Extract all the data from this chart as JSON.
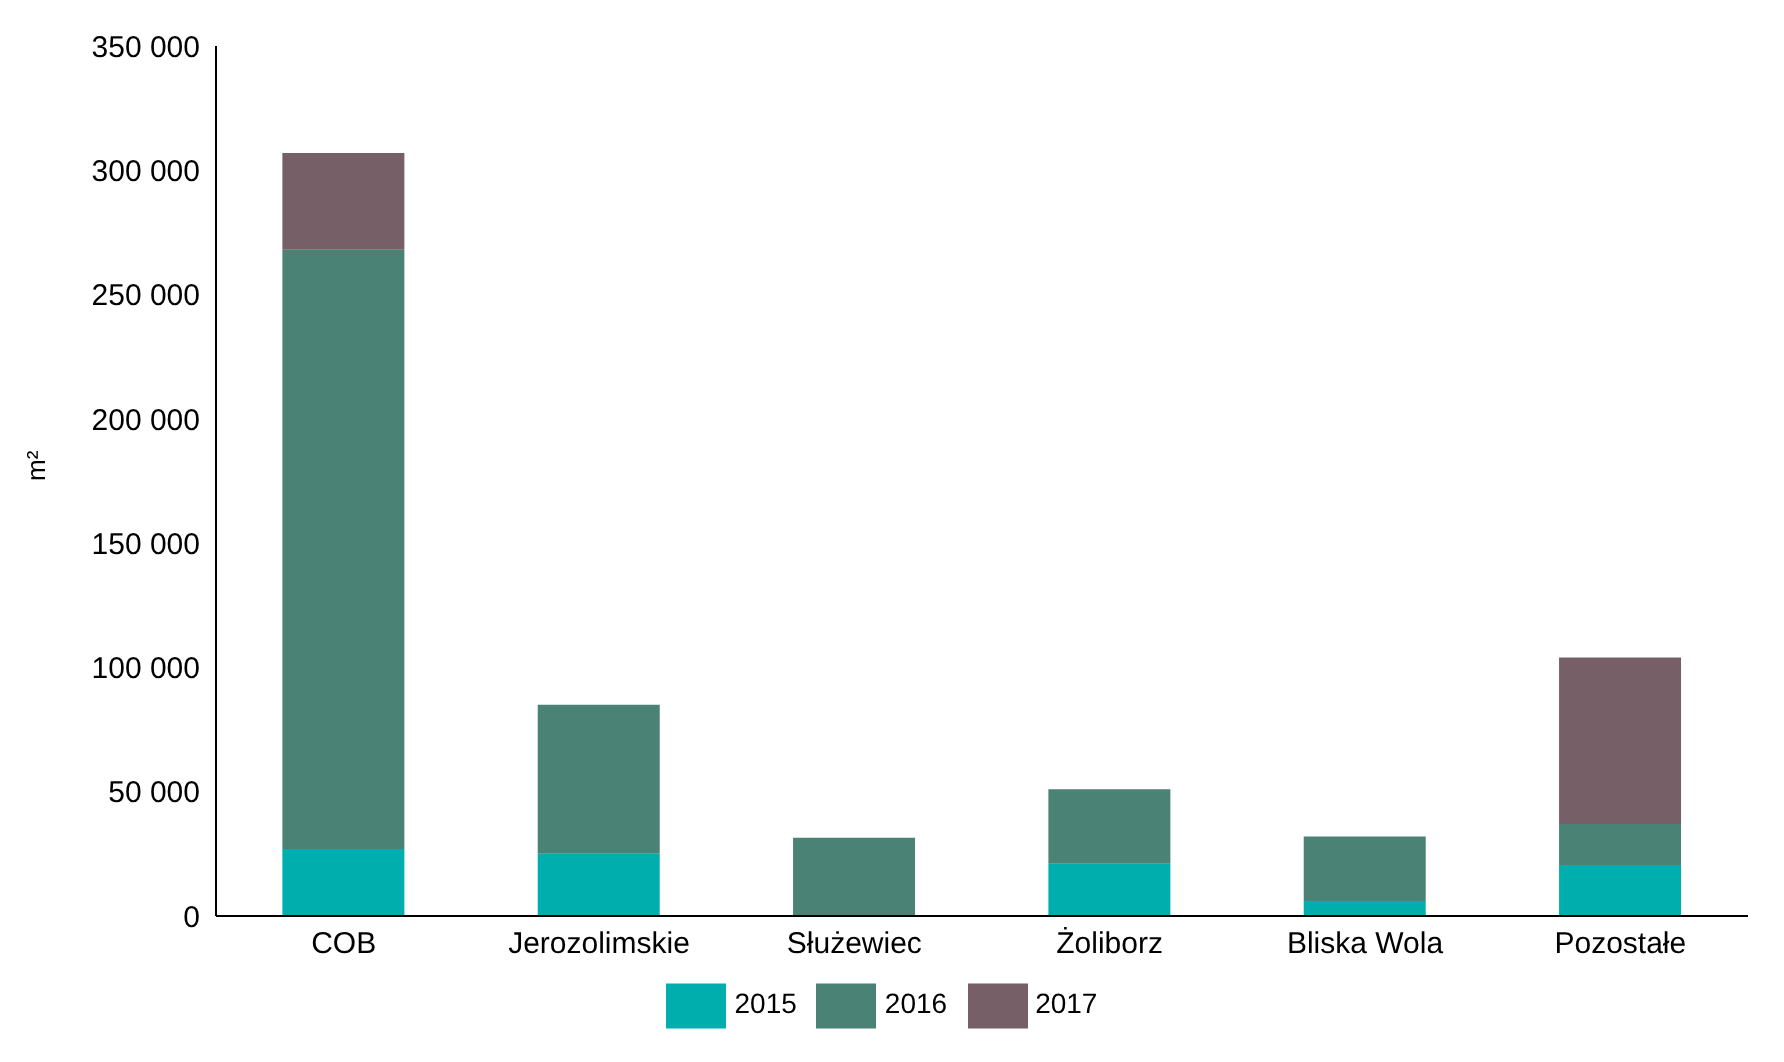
{
  "chart_data": {
    "type": "bar",
    "stacked": true,
    "ylabel": "m²",
    "categories": [
      "COB",
      "Jerozolimskie",
      "Służewiec",
      "Żoliborz",
      "Bliska Wola",
      "Pozostałe"
    ],
    "series": [
      {
        "name": "2015",
        "color": "#00aeae",
        "values": [
          27000,
          25000,
          0,
          21000,
          6000,
          20500
        ]
      },
      {
        "name": "2016",
        "color": "#4a8276",
        "values": [
          241000,
          60000,
          31500,
          30000,
          26000,
          16500
        ]
      },
      {
        "name": "2017",
        "color": "#765f66",
        "values": [
          39000,
          0,
          0,
          0,
          0,
          67000
        ]
      }
    ],
    "ylim": [
      0,
      350000
    ],
    "yticks": [
      {
        "value": 0,
        "label": "0"
      },
      {
        "value": 50000,
        "label": "50 000"
      },
      {
        "value": 100000,
        "label": "100 000"
      },
      {
        "value": 150000,
        "label": "150 000"
      },
      {
        "value": 200000,
        "label": "200 000"
      },
      {
        "value": 250000,
        "label": "250 000"
      },
      {
        "value": 300000,
        "label": "300 000"
      },
      {
        "value": 350000,
        "label": "350 000"
      }
    ],
    "grid": false,
    "legend": "bottom"
  }
}
